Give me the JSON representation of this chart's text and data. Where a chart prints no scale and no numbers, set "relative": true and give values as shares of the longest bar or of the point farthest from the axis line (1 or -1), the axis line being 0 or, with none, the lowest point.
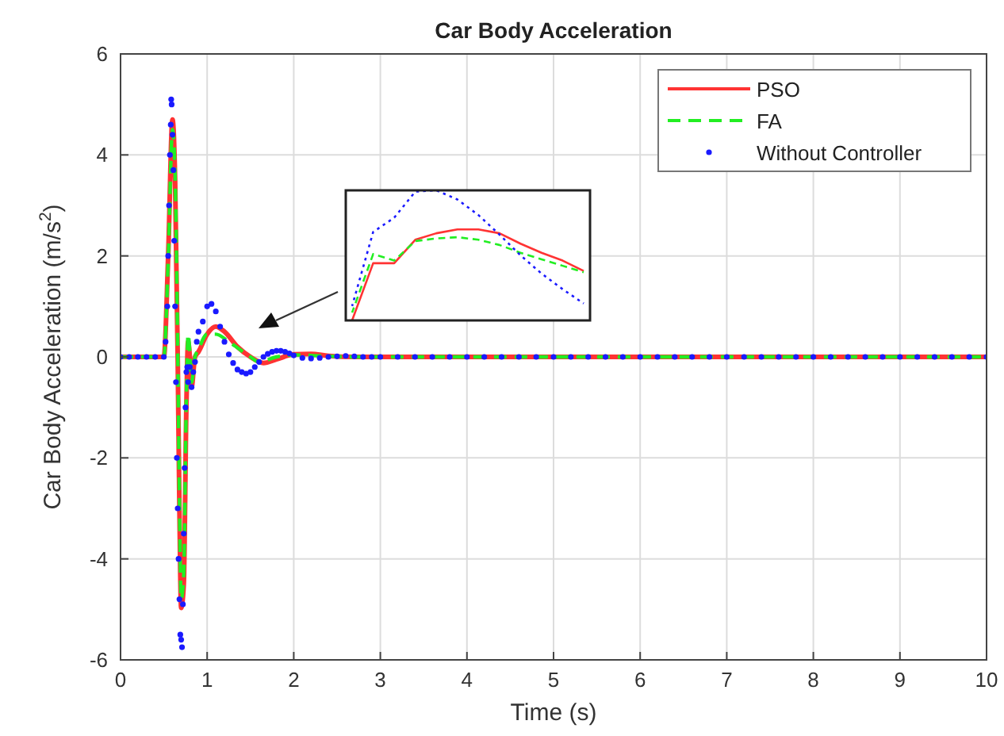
{
  "chart_data": [
    {
      "type": "line",
      "title": "Car Body Acceleration",
      "xlabel": "Time (s)",
      "ylabel": "Car Body Acceleration (m/s$^{2}$)",
      "xlim": [
        0,
        10
      ],
      "ylim": [
        -6,
        6
      ],
      "xticks": [
        0,
        1,
        2,
        3,
        4,
        5,
        6,
        7,
        8,
        9,
        10
      ],
      "yticks": [
        -6,
        -4,
        -2,
        0,
        2,
        4,
        6
      ],
      "grid": true,
      "legend": "top right",
      "series": [
        {
          "name": "PSO",
          "color": "#ff3333",
          "line_style": "solid",
          "x": [
            0,
            0.5,
            0.55,
            0.6,
            0.63,
            0.66,
            0.68,
            0.7,
            0.73,
            0.76,
            0.78,
            0.8,
            0.82,
            0.86,
            0.9,
            1.0,
            1.1,
            1.2,
            1.35,
            1.5,
            1.65,
            1.8,
            2.0,
            2.2,
            2.4,
            2.7,
            10
          ],
          "values": [
            0,
            0,
            2,
            4.7,
            3.5,
            0,
            -3,
            -4.97,
            -4.5,
            -1,
            0.3,
            0,
            -0.6,
            0,
            0.1,
            0.45,
            0.6,
            0.5,
            0.2,
            0,
            -0.12,
            -0.05,
            0.05,
            0.06,
            0.02,
            0,
            0
          ]
        },
        {
          "name": "FA",
          "color": "#22ee22",
          "line_style": "dashed",
          "x": [
            0,
            0.5,
            0.55,
            0.6,
            0.63,
            0.66,
            0.68,
            0.7,
            0.73,
            0.76,
            0.78,
            0.8,
            0.82,
            0.86,
            0.9,
            1.0,
            1.1,
            1.25,
            1.5,
            1.6,
            1.8,
            2.0,
            2.3,
            2.7,
            10
          ],
          "values": [
            0,
            0,
            1.9,
            4.5,
            3.6,
            0.2,
            -2.8,
            -4.8,
            -4.3,
            -0.8,
            0.45,
            0.1,
            -0.5,
            0,
            0.15,
            0.45,
            0.45,
            0.3,
            0,
            -0.1,
            0,
            0.04,
            0.02,
            0,
            0
          ]
        },
        {
          "name": "Without Controller",
          "color": "#1a1aff",
          "type": "scatter",
          "marker": "circle",
          "x": [
            0,
            0.1,
            0.2,
            0.3,
            0.4,
            0.5,
            0.52,
            0.54,
            0.55,
            0.56,
            0.57,
            0.58,
            0.585,
            0.59,
            0.6,
            0.61,
            0.62,
            0.63,
            0.64,
            0.65,
            0.66,
            0.67,
            0.68,
            0.69,
            0.7,
            0.71,
            0.72,
            0.73,
            0.74,
            0.75,
            0.76,
            0.77,
            0.78,
            0.8,
            0.82,
            0.84,
            0.86,
            0.88,
            0.9,
            0.95,
            1.0,
            1.05,
            1.1,
            1.15,
            1.2,
            1.25,
            1.3,
            1.35,
            1.4,
            1.45,
            1.5,
            1.55,
            1.6,
            1.65,
            1.7,
            1.75,
            1.8,
            1.85,
            1.9,
            1.95,
            2.0,
            2.1,
            2.2,
            2.3,
            2.4,
            2.5,
            2.6,
            2.7,
            2.8,
            2.9,
            3.0,
            3.2,
            3.4,
            3.6,
            3.8,
            4.0,
            4.2,
            4.4,
            4.6,
            4.8,
            5.0,
            5.2,
            5.4,
            5.6,
            5.8,
            6.0,
            6.2,
            6.4,
            6.6,
            6.8,
            7.0,
            7.2,
            7.4,
            7.6,
            7.8,
            8.0,
            8.2,
            8.4,
            8.6,
            8.8,
            9.0,
            9.2,
            9.4,
            9.6,
            9.8,
            10
          ],
          "values": [
            0,
            0,
            0,
            0,
            0,
            0,
            0.3,
            1,
            2,
            3,
            4,
            4.6,
            5.1,
            5.0,
            4.4,
            3.7,
            2.3,
            1,
            -0.5,
            -2,
            -3,
            -4,
            -4.8,
            -5.5,
            -5.6,
            -5.75,
            -4.9,
            -3.5,
            -2.2,
            -1,
            -0.3,
            -0.2,
            -0.5,
            -0.2,
            -0.6,
            -0.3,
            -0.1,
            0.3,
            0.5,
            0.7,
            1.0,
            1.05,
            0.9,
            0.6,
            0.3,
            0.05,
            -0.12,
            -0.25,
            -0.3,
            -0.33,
            -0.3,
            -0.2,
            -0.1,
            0,
            0.06,
            0.1,
            0.12,
            0.12,
            0.1,
            0.07,
            0.03,
            -0.02,
            -0.03,
            -0.02,
            0,
            0.01,
            0.02,
            0.01,
            0,
            0,
            0,
            0,
            0,
            0,
            0,
            0,
            0,
            0,
            0,
            0,
            0,
            0,
            0,
            0,
            0,
            0,
            0,
            0,
            0,
            0,
            0,
            0,
            0,
            0,
            0,
            0,
            0,
            0,
            0,
            0,
            0,
            0,
            0,
            0,
            0,
            0
          ]
        }
      ]
    },
    {
      "type": "line",
      "relative": true,
      "categories": [
        null,
        null,
        null,
        null,
        null,
        null,
        null,
        null,
        null,
        null,
        null,
        null
      ],
      "series": [
        {
          "color": "#ff3333",
          "line_style": "solid",
          "values": [
            0,
            0.44,
            0.44,
            0.62,
            0.67,
            0.7,
            0.7,
            0.67,
            0.59,
            0.52,
            0.46,
            0.38
          ]
        },
        {
          "color": "#22ee22",
          "line_style": "dashed",
          "values": [
            0.06,
            0.51,
            0.46,
            0.61,
            0.63,
            0.64,
            0.62,
            0.58,
            0.52,
            0.47,
            0.42,
            0.37
          ]
        },
        {
          "color": "#1a1aff",
          "line_style": "dotted",
          "values": [
            0.11,
            0.68,
            0.79,
            0.99,
            1,
            0.93,
            0.81,
            0.66,
            0.5,
            0.36,
            0.24,
            0.13
          ]
        }
      ]
    }
  ]
}
